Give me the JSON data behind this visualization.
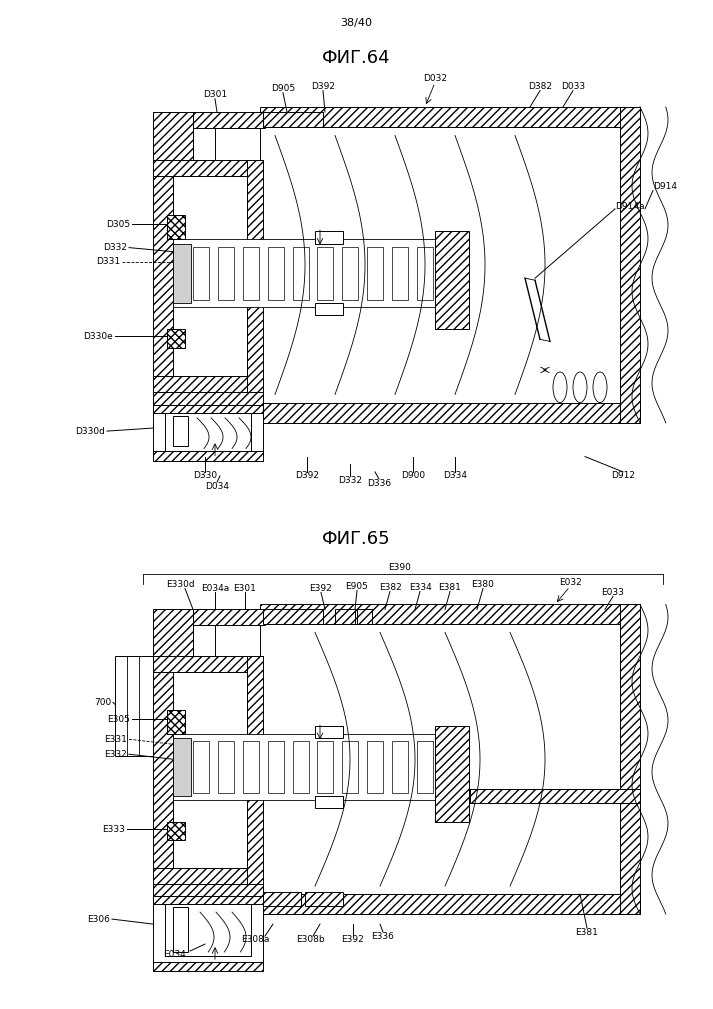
{
  "page_label": "38/40",
  "fig1_title": "ФИГ.64",
  "fig2_title": "ФИГ.65",
  "bg_color": "#ffffff",
  "lw_thin": 0.6,
  "lw_med": 1.0,
  "lw_thick": 1.5,
  "fontsize_title": 13,
  "fontsize_label": 6.5,
  "fontsize_page": 8
}
